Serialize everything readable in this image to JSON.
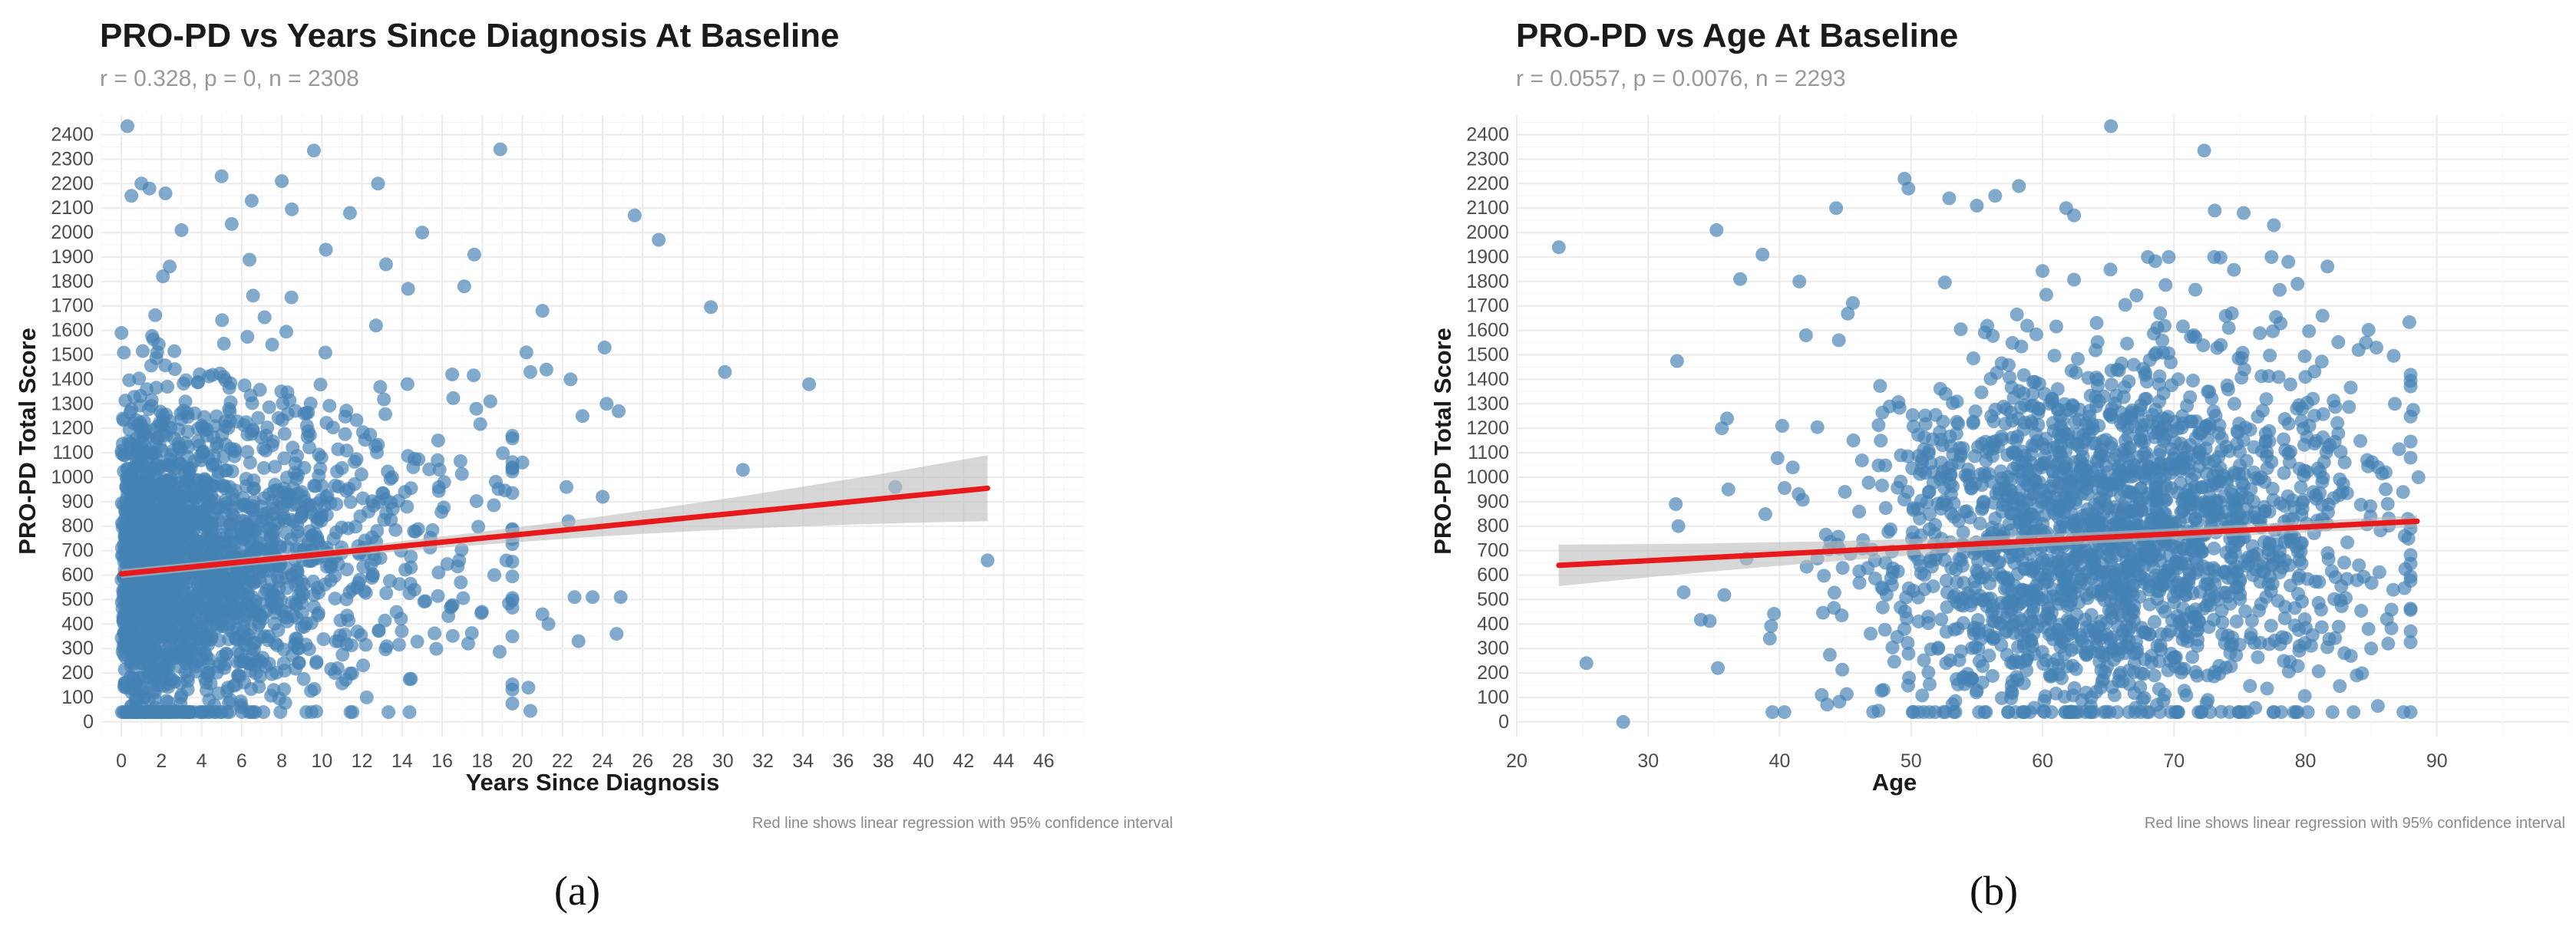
{
  "chart_data": [
    {
      "type": "scatter",
      "panel_label": "(a)",
      "title": "PRO-PD vs Years Since Diagnosis At Baseline",
      "subtitle": "r = 0.328, p = 0, n = 2308",
      "xlabel": "Years Since Diagnosis",
      "ylabel": "PRO-PD Total Score",
      "caption": "Red line shows linear regression with 95% confidence interval",
      "xlim": [
        -1,
        48
      ],
      "ylim": [
        -60,
        2480
      ],
      "x_ticks": [
        0,
        2,
        4,
        6,
        8,
        10,
        12,
        14,
        16,
        18,
        20,
        22,
        24,
        26,
        28,
        30,
        32,
        34,
        36,
        38,
        40,
        42,
        44,
        46
      ],
      "y_ticks": [
        0,
        100,
        200,
        300,
        400,
        500,
        600,
        700,
        800,
        900,
        1000,
        1100,
        1200,
        1300,
        1400,
        1500,
        1600,
        1700,
        1800,
        1900,
        2000,
        2100,
        2200,
        2300,
        2400
      ],
      "n": 2308,
      "regression": {
        "x_start": 0,
        "x_end": 43.2,
        "y_start": 605,
        "y_end": 955,
        "ci_start": 30,
        "ci_end": 135
      },
      "point_color": "#4682b4",
      "line_color": "#e8191b",
      "points": [
        [
          0.3,
          2435
        ],
        [
          0.5,
          2150
        ],
        [
          1.0,
          2200
        ],
        [
          1.4,
          2180
        ],
        [
          2.2,
          2160
        ],
        [
          3.0,
          2010
        ],
        [
          5.0,
          2230
        ],
        [
          5.5,
          2035
        ],
        [
          8.0,
          2210
        ],
        [
          9.6,
          2335
        ],
        [
          12.8,
          2200
        ],
        [
          18.9,
          2340
        ],
        [
          6.5,
          2130
        ],
        [
          8.5,
          2095
        ],
        [
          25.6,
          2070
        ],
        [
          26.8,
          1970
        ],
        [
          29.4,
          1695
        ],
        [
          30.1,
          1430
        ],
        [
          34.3,
          1380
        ],
        [
          31.0,
          1030
        ],
        [
          38.6,
          960
        ],
        [
          43.2,
          660
        ],
        [
          21.0,
          1680
        ],
        [
          21.2,
          1440
        ],
        [
          20.2,
          1510
        ],
        [
          20.4,
          1430
        ],
        [
          22.4,
          1400
        ],
        [
          24.1,
          1530
        ],
        [
          24.2,
          1300
        ],
        [
          24.8,
          1270
        ],
        [
          24.0,
          920
        ],
        [
          22.3,
          820
        ],
        [
          22.2,
          960
        ],
        [
          23.0,
          1250
        ],
        [
          20.3,
          140
        ],
        [
          20.4,
          45
        ],
        [
          21.0,
          440
        ],
        [
          21.3,
          400
        ],
        [
          22.6,
          510
        ],
        [
          22.8,
          330
        ],
        [
          24.9,
          510
        ],
        [
          24.7,
          360
        ],
        [
          23.5,
          510
        ],
        [
          17.3,
          320
        ],
        [
          18.6,
          600
        ],
        [
          19.2,
          660
        ],
        [
          19.5,
          1040
        ],
        [
          20.0,
          1060
        ],
        [
          18.4,
          1310
        ],
        [
          17.7,
          1280
        ],
        [
          16.5,
          1420
        ],
        [
          15.8,
          1150
        ],
        [
          16.1,
          980
        ],
        [
          17.1,
          1780
        ],
        [
          17.6,
          1910
        ],
        [
          15.0,
          2000
        ],
        [
          11.4,
          2080
        ],
        [
          13.2,
          1870
        ],
        [
          14.3,
          1770
        ],
        [
          10.2,
          1930
        ],
        [
          12.7,
          1620
        ],
        [
          13.5,
          1000
        ]
      ],
      "cloud_seed": 11
    },
    {
      "type": "scatter",
      "panel_label": "(b)",
      "title": "PRO-PD vs Age At Baseline",
      "subtitle": "r = 0.0557, p = 0.0076, n = 2293",
      "xlabel": "Age",
      "ylabel": "PRO-PD Total Score",
      "caption": "Red line shows linear regression with 95% confidence interval",
      "xlim": [
        20,
        100
      ],
      "ylim": [
        -60,
        2480
      ],
      "x_ticks": [
        20,
        30,
        40,
        50,
        60,
        70,
        80,
        90
      ],
      "y_ticks": [
        0,
        100,
        200,
        300,
        400,
        500,
        600,
        700,
        800,
        900,
        1000,
        1100,
        1200,
        1300,
        1400,
        1500,
        1600,
        1700,
        1800,
        1900,
        2000,
        2100,
        2200,
        2300,
        2400
      ],
      "n": 2293,
      "regression": {
        "x_start": 23.2,
        "x_end": 88.5,
        "y_start": 640,
        "y_end": 820,
        "ci_start": 85,
        "ci_end": 40
      },
      "point_color": "#4682b4",
      "line_color": "#e8191b",
      "points": [
        [
          23.2,
          1940
        ],
        [
          25.3,
          240
        ],
        [
          32.1,
          890
        ],
        [
          32.2,
          1475
        ],
        [
          32.7,
          530
        ],
        [
          32.3,
          800
        ],
        [
          35.2,
          2010
        ],
        [
          35.6,
          1200
        ],
        [
          35.3,
          220
        ],
        [
          36.1,
          950
        ],
        [
          36.0,
          1240
        ],
        [
          37.0,
          1810
        ],
        [
          38.7,
          1910
        ],
        [
          40.2,
          1210
        ],
        [
          41.5,
          1800
        ],
        [
          41.0,
          1040
        ],
        [
          42.0,
          1580
        ],
        [
          43.2,
          110
        ],
        [
          44.3,
          2100
        ],
        [
          44.5,
          1560
        ],
        [
          49.5,
          2220
        ],
        [
          49.8,
          2180
        ],
        [
          52.9,
          2140
        ],
        [
          55.0,
          2110
        ],
        [
          56.4,
          2150
        ],
        [
          58.2,
          2190
        ],
        [
          61.8,
          2100
        ],
        [
          62.4,
          2070
        ],
        [
          65.2,
          2435
        ],
        [
          72.3,
          2335
        ],
        [
          73.1,
          2090
        ],
        [
          75.3,
          2080
        ],
        [
          77.6,
          2030
        ],
        [
          78.7,
          1880
        ],
        [
          79.4,
          1790
        ],
        [
          81.3,
          1660
        ],
        [
          84.6,
          1550
        ],
        [
          85.4,
          1530
        ],
        [
          86.8,
          1300
        ],
        [
          88.2,
          1275
        ],
        [
          88.6,
          1000
        ],
        [
          86.1,
          1020
        ],
        [
          84.7,
          1070
        ],
        [
          87.8,
          830
        ],
        [
          85.0,
          300
        ],
        [
          79.4,
          40
        ],
        [
          83.9,
          190
        ],
        [
          84.8,
          380
        ],
        [
          86.2,
          420
        ],
        [
          28.1,
          0
        ]
      ],
      "cloud_seed": 29
    }
  ]
}
